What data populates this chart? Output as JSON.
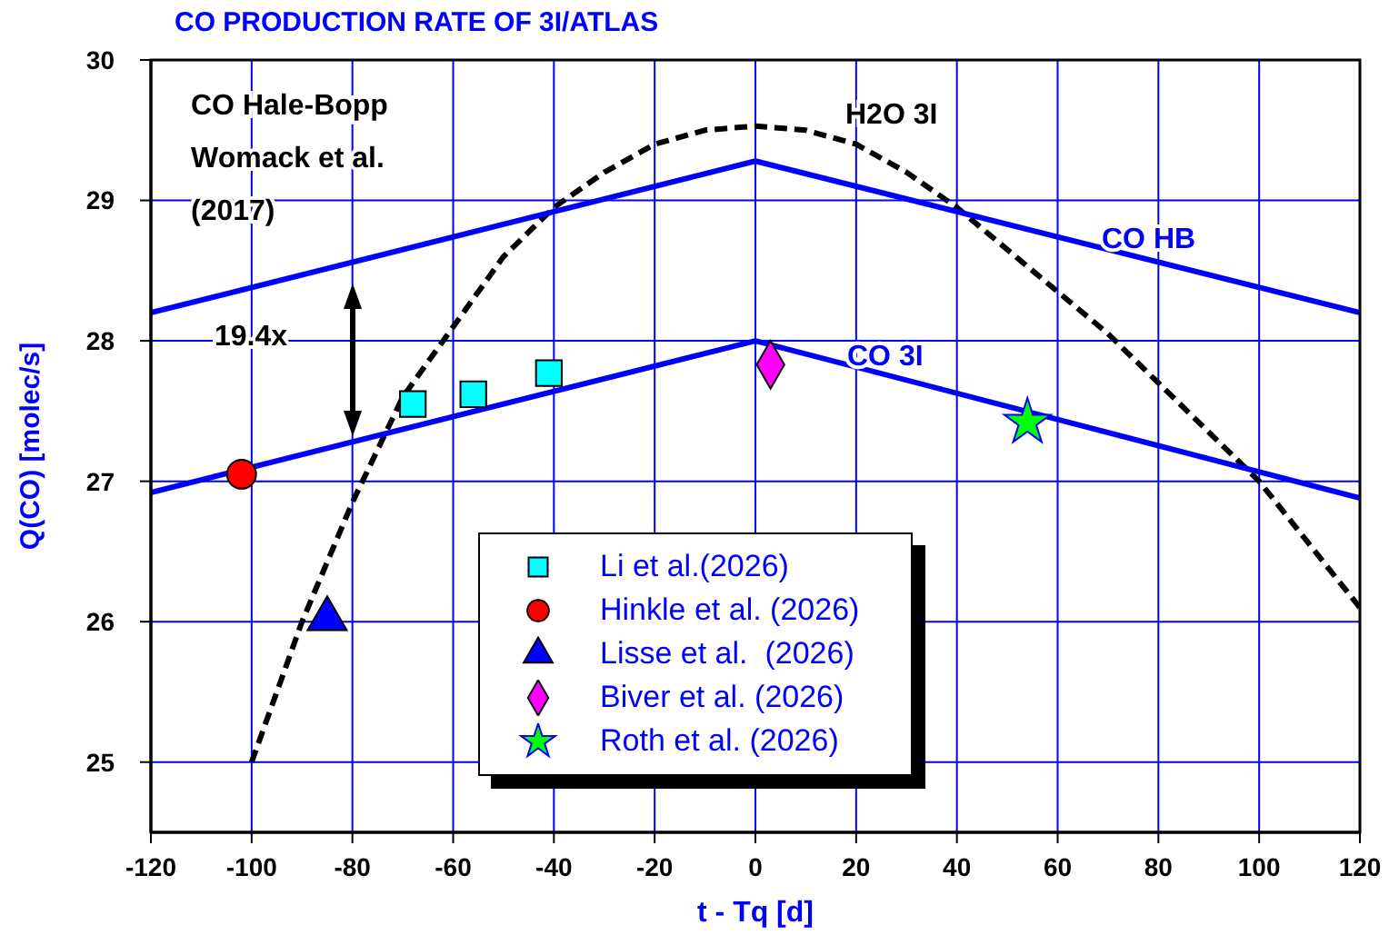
{
  "chart_data": {
    "type": "scatter",
    "title": "CO PRODUCTION RATE OF 3I/ATLAS",
    "xlabel": "t - Tq [d]",
    "ylabel": "Q(CO) [molec/s]",
    "xlim": [
      -120,
      120
    ],
    "xticks": [
      -120,
      -100,
      -80,
      -60,
      -40,
      -20,
      0,
      20,
      40,
      60,
      80,
      100,
      120
    ],
    "ylim": [
      24.5,
      30
    ],
    "yticks": [
      25,
      26,
      27,
      28,
      29,
      30
    ],
    "grid": true,
    "legend": "bottom",
    "annotations": [
      "CO Hale-Bopp\nWomack et al.\n(2017)",
      "19.4x"
    ],
    "series": [
      {
        "name": "H2O 3I",
        "type": "line",
        "color": "#000000",
        "line_style": "dashed",
        "marker": "none",
        "x": [
          -100,
          -90,
          -80,
          -70,
          -60,
          -50,
          -40,
          -30,
          -20,
          -10,
          0,
          10,
          20,
          30,
          40,
          50,
          60,
          70,
          80,
          90,
          100,
          110,
          120
        ],
        "values": [
          25.0,
          26.0,
          26.85,
          27.6,
          28.1,
          28.6,
          28.95,
          29.2,
          29.4,
          29.5,
          29.53,
          29.5,
          29.4,
          29.2,
          28.95,
          28.65,
          28.35,
          28.05,
          27.7,
          27.35,
          27.0,
          26.55,
          26.1
        ]
      },
      {
        "name": "CO HB",
        "type": "line",
        "color": "#0000ff",
        "line_style": "solid",
        "marker": "none",
        "x": [
          -120,
          0,
          120
        ],
        "values": [
          28.2,
          29.28,
          28.2
        ]
      },
      {
        "name": "CO 3I",
        "type": "line",
        "color": "#0000ff",
        "line_style": "solid",
        "marker": "none",
        "x": [
          -120,
          0,
          120
        ],
        "values": [
          26.92,
          28.0,
          26.88
        ]
      },
      {
        "name": "Li et al.(2026)",
        "color": "#00ffff",
        "marker": "square",
        "x": [
          -68,
          -56,
          -41
        ],
        "values": [
          27.55,
          27.62,
          27.77
        ]
      },
      {
        "name": "Hinkle et al. (2026)",
        "color": "#ff0000",
        "marker": "circle",
        "x": [
          -102
        ],
        "values": [
          27.05
        ]
      },
      {
        "name": "Lisse et al.  (2026)",
        "color": "#0000ff",
        "marker": "triangle",
        "x": [
          -85
        ],
        "values": [
          26.02
        ]
      },
      {
        "name": "Biver et al. (2026)",
        "color": "#ff00ff",
        "marker": "diamond",
        "x": [
          3
        ],
        "values": [
          27.83
        ]
      },
      {
        "name": "Roth et al. (2026)",
        "color": "#00ff00",
        "marker": "star",
        "x": [
          54
        ],
        "values": [
          27.42
        ]
      }
    ]
  }
}
